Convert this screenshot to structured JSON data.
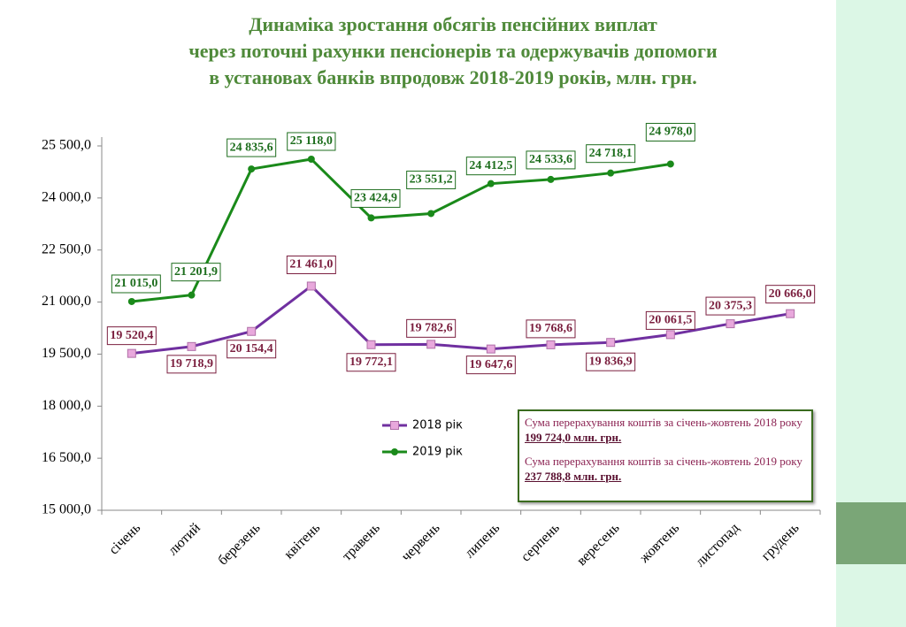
{
  "chart_data": {
    "type": "line",
    "title": [
      "Динаміка зростання обсягів пенсійних виплат",
      "через поточні рахунки пенсіонерів та одержувачів допомоги",
      "в установах банків впродовж 2018-2019 років, млн. грн."
    ],
    "categories": [
      "січень",
      "лютий",
      "березень",
      "квітень",
      "травень",
      "червень",
      "липень",
      "серпень",
      "вересень",
      "жовтень",
      "листопад",
      "грудень"
    ],
    "series": [
      {
        "name": "2018 рік",
        "color": "#7030a0",
        "marker_color": "#e8a8dc",
        "label_color": "#7b1f3f",
        "values": [
          19520.4,
          19718.9,
          20154.4,
          21461.0,
          19772.1,
          19782.6,
          19647.6,
          19768.6,
          19836.9,
          20061.5,
          20375.3,
          20666.0
        ],
        "value_labels": [
          "19 520,4",
          "19 718,9",
          "20 154,4",
          "21 461,0",
          "19 772,1",
          "19 782,6",
          "19 647,6",
          "19 768,6",
          "19 836,9",
          "20 061,5",
          "20 375,3",
          "20 666,0"
        ]
      },
      {
        "name": "2019 рік",
        "color": "#1a8a1a",
        "marker_color": "#1a8a1a",
        "label_color": "#1e6e1e",
        "values": [
          21015.0,
          21201.9,
          24835.6,
          25118.0,
          23424.9,
          23551.2,
          24412.5,
          24533.6,
          24718.1,
          24978.0,
          null,
          null
        ],
        "value_labels": [
          "21 015,0",
          "21 201,9",
          "24 835,6",
          "25 118,0",
          "23 424,9",
          "23 551,2",
          "24 412,5",
          "24 533,6",
          "24 718,1",
          "24 978,0",
          null,
          null
        ]
      }
    ],
    "ylim": [
      15000,
      25500
    ],
    "yticks": [
      {
        "value": 15000,
        "label": "15 000,0"
      },
      {
        "value": 16500,
        "label": "16 500,0"
      },
      {
        "value": 18000,
        "label": "18 000,0"
      },
      {
        "value": 19500,
        "label": "19 500,0"
      },
      {
        "value": 21000,
        "label": "21 000,0"
      },
      {
        "value": 22500,
        "label": "22 500,0"
      },
      {
        "value": 24000,
        "label": "24 000,0"
      },
      {
        "value": 25500,
        "label": "25 500,0"
      }
    ],
    "annotations": [
      {
        "text": "Сума перерахування коштів  за січень-жовтень 2018 року",
        "amount": "199 724,0 млн. грн."
      },
      {
        "text": "Сума перерахування коштів  за січень-жовтень 2019 року",
        "amount": "237 788,8 млн. грн."
      }
    ]
  }
}
